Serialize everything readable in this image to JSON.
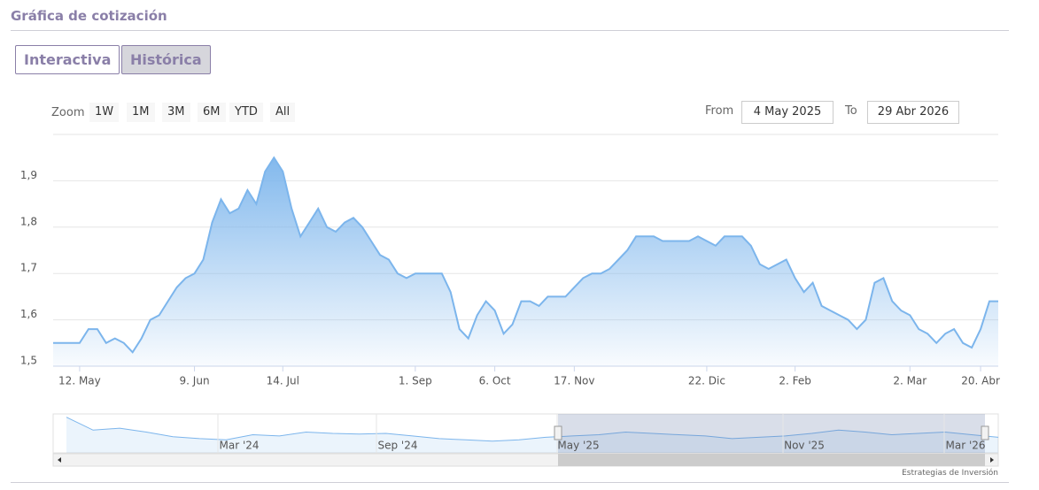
{
  "header": {
    "title": "Gráfica de cotización"
  },
  "tabs": [
    "Interactiva",
    "Histórica"
  ],
  "zoom": {
    "label": "Zoom",
    "buttons": [
      "1W",
      "1M",
      "3M",
      "6M",
      "YTD",
      "All"
    ]
  },
  "range": {
    "from_label": "From",
    "from": "4 May 2025",
    "to_label": "To",
    "to": "29 Abr 2026"
  },
  "chart_data": {
    "type": "area",
    "categories": [
      null,
      null,
      null,
      "12. May",
      null,
      null,
      null,
      null,
      null,
      null,
      null,
      null,
      null,
      null,
      null,
      null,
      "9. Jun",
      null,
      null,
      null,
      null,
      null,
      null,
      null,
      null,
      null,
      "14. Jul",
      null,
      null,
      null,
      null,
      null,
      null,
      null,
      null,
      null,
      null,
      null,
      null,
      null,
      null,
      "1. Sep",
      null,
      null,
      null,
      null,
      null,
      null,
      null,
      null,
      "6. Oct",
      null,
      null,
      null,
      null,
      null,
      null,
      null,
      null,
      "17. Nov",
      null,
      null,
      null,
      null,
      null,
      null,
      null,
      null,
      null,
      null,
      null,
      null,
      null,
      null,
      "22. Dic",
      null,
      null,
      null,
      null,
      null,
      null,
      null,
      null,
      null,
      "2. Feb",
      null,
      null,
      null,
      null,
      null,
      null,
      null,
      null,
      null,
      null,
      null,
      null,
      "2. Mar",
      null,
      null,
      null,
      null,
      null,
      null,
      null,
      "20. Abr",
      null,
      null
    ],
    "series": [
      {
        "color": "#7cb5ec",
        "values": [
          1.55,
          1.55,
          1.55,
          1.55,
          1.58,
          1.58,
          1.55,
          1.56,
          1.55,
          1.53,
          1.56,
          1.6,
          1.61,
          1.64,
          1.67,
          1.69,
          1.7,
          1.73,
          1.81,
          1.86,
          1.83,
          1.84,
          1.88,
          1.85,
          1.92,
          1.95,
          1.92,
          1.84,
          1.78,
          1.81,
          1.84,
          1.8,
          1.79,
          1.81,
          1.82,
          1.8,
          1.77,
          1.74,
          1.73,
          1.7,
          1.69,
          1.7,
          1.7,
          1.7,
          1.7,
          1.66,
          1.58,
          1.56,
          1.61,
          1.64,
          1.62,
          1.57,
          1.59,
          1.64,
          1.64,
          1.63,
          1.65,
          1.65,
          1.65,
          1.67,
          1.69,
          1.7,
          1.7,
          1.71,
          1.73,
          1.75,
          1.78,
          1.78,
          1.78,
          1.77,
          1.77,
          1.77,
          1.77,
          1.78,
          1.77,
          1.76,
          1.78,
          1.78,
          1.78,
          1.76,
          1.72,
          1.71,
          1.72,
          1.73,
          1.69,
          1.66,
          1.68,
          1.63,
          1.62,
          1.61,
          1.6,
          1.58,
          1.6,
          1.68,
          1.69,
          1.64,
          1.62,
          1.61,
          1.58,
          1.57,
          1.55,
          1.57,
          1.58,
          1.55,
          1.54,
          1.58,
          1.64,
          1.64
        ]
      }
    ],
    "ylim": [
      1.5,
      2.0
    ],
    "yticks": [
      {
        "value": 1.5,
        "label": "1,5"
      },
      {
        "value": 1.6,
        "label": "1,6"
      },
      {
        "value": 1.7,
        "label": "1,7"
      },
      {
        "value": 1.8,
        "label": "1,8"
      },
      {
        "value": 1.9,
        "label": "1,9"
      }
    ],
    "grid": true
  },
  "navigator": {
    "labels": [
      "Mar '24",
      "Sep '24",
      "May '25",
      "Nov '25",
      "Mar '26"
    ],
    "values": [
      1.95,
      1.75,
      1.78,
      1.72,
      1.65,
      1.62,
      1.6,
      1.68,
      1.66,
      1.72,
      1.7,
      1.69,
      1.7,
      1.66,
      1.62,
      1.6,
      1.58,
      1.6,
      1.64,
      1.66,
      1.68,
      1.72,
      1.7,
      1.68,
      1.66,
      1.62,
      1.64,
      1.66,
      1.7,
      1.75,
      1.72,
      1.68,
      1.7,
      1.72,
      1.68,
      1.64
    ],
    "ylim": [
      1.4,
      2.0
    ]
  },
  "credit": "Estrategias de Inversión"
}
